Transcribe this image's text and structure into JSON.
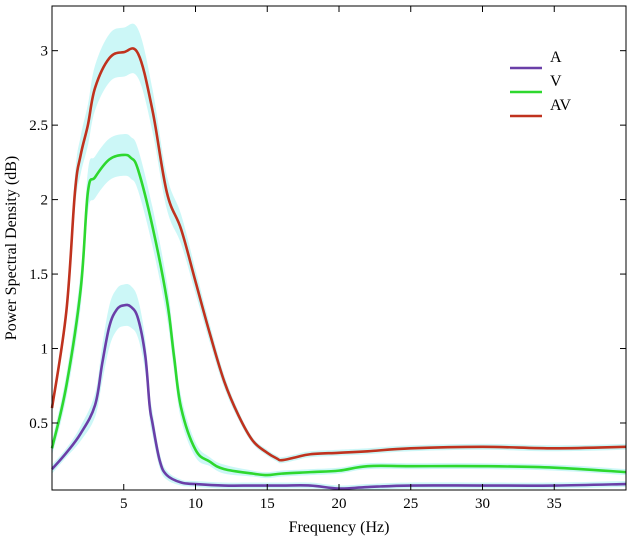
{
  "chart_data": {
    "type": "line",
    "title": "",
    "xlabel": "Frequency (Hz)",
    "ylabel": "Power Spectral Density (dB)",
    "xlim": [
      0,
      40
    ],
    "ylim": [
      0.05,
      3.3
    ],
    "xticks": [
      5,
      10,
      15,
      20,
      25,
      30,
      35
    ],
    "yticks": [
      0.5,
      1,
      1.5,
      2,
      2.5,
      3
    ],
    "xtick_labels": [
      "5",
      "10",
      "15",
      "20",
      "25",
      "30",
      "35"
    ],
    "ytick_labels": [
      "0.5",
      "1",
      "1.5",
      "2",
      "2.5",
      "3"
    ],
    "grid": false,
    "legend_position": "top-right",
    "band_color": "#ccf7f7",
    "series": [
      {
        "name": "A",
        "color": "#6a3fa8",
        "x": [
          0,
          1,
          2,
          3,
          3.5,
          4,
          4.5,
          5,
          5.5,
          6,
          6.5,
          6.8,
          7,
          7.5,
          8,
          9,
          10,
          12,
          14,
          16,
          18,
          20,
          22,
          25,
          30,
          35,
          40
        ],
        "y": [
          0.19,
          0.3,
          0.43,
          0.62,
          0.9,
          1.15,
          1.26,
          1.29,
          1.28,
          1.2,
          0.95,
          0.62,
          0.5,
          0.25,
          0.15,
          0.1,
          0.09,
          0.08,
          0.08,
          0.08,
          0.08,
          0.06,
          0.07,
          0.08,
          0.08,
          0.08,
          0.09
        ],
        "band": [
          0.03,
          0.03,
          0.05,
          0.08,
          0.12,
          0.14,
          0.14,
          0.14,
          0.14,
          0.13,
          0.11,
          0.09,
          0.08,
          0.05,
          0.03,
          0.02,
          0.02,
          0.02,
          0.02,
          0.02,
          0.02,
          0.02,
          0.02,
          0.02,
          0.02,
          0.02,
          0.02
        ]
      },
      {
        "name": "V",
        "color": "#2ed82e",
        "x": [
          0,
          1,
          2,
          2.5,
          3,
          4,
          5,
          5.5,
          6,
          7,
          8,
          8.5,
          9,
          10,
          11,
          12,
          14,
          15,
          16,
          18,
          20,
          22,
          25,
          30,
          35,
          40
        ],
        "y": [
          0.33,
          0.75,
          1.4,
          2.05,
          2.15,
          2.27,
          2.3,
          2.28,
          2.2,
          1.82,
          1.33,
          0.95,
          0.6,
          0.32,
          0.24,
          0.19,
          0.16,
          0.15,
          0.16,
          0.17,
          0.18,
          0.21,
          0.21,
          0.21,
          0.2,
          0.17
        ],
        "band": [
          0.05,
          0.08,
          0.12,
          0.14,
          0.14,
          0.14,
          0.14,
          0.14,
          0.14,
          0.13,
          0.12,
          0.1,
          0.08,
          0.05,
          0.03,
          0.03,
          0.02,
          0.02,
          0.02,
          0.02,
          0.02,
          0.02,
          0.02,
          0.02,
          0.02,
          0.02
        ]
      },
      {
        "name": "AV",
        "color": "#c0321e",
        "x": [
          0,
          1,
          1.6,
          2,
          2.5,
          3,
          4,
          5,
          6,
          7,
          8,
          9,
          10,
          11,
          12,
          13,
          14,
          15,
          15.7,
          16,
          17,
          18,
          20,
          22,
          25,
          30,
          35,
          40
        ],
        "y": [
          0.6,
          1.25,
          2.05,
          2.3,
          2.5,
          2.75,
          2.95,
          2.99,
          2.98,
          2.6,
          2.05,
          1.8,
          1.45,
          1.1,
          0.78,
          0.55,
          0.38,
          0.3,
          0.26,
          0.25,
          0.27,
          0.29,
          0.3,
          0.31,
          0.33,
          0.34,
          0.33,
          0.34
        ]
      }
    ]
  }
}
